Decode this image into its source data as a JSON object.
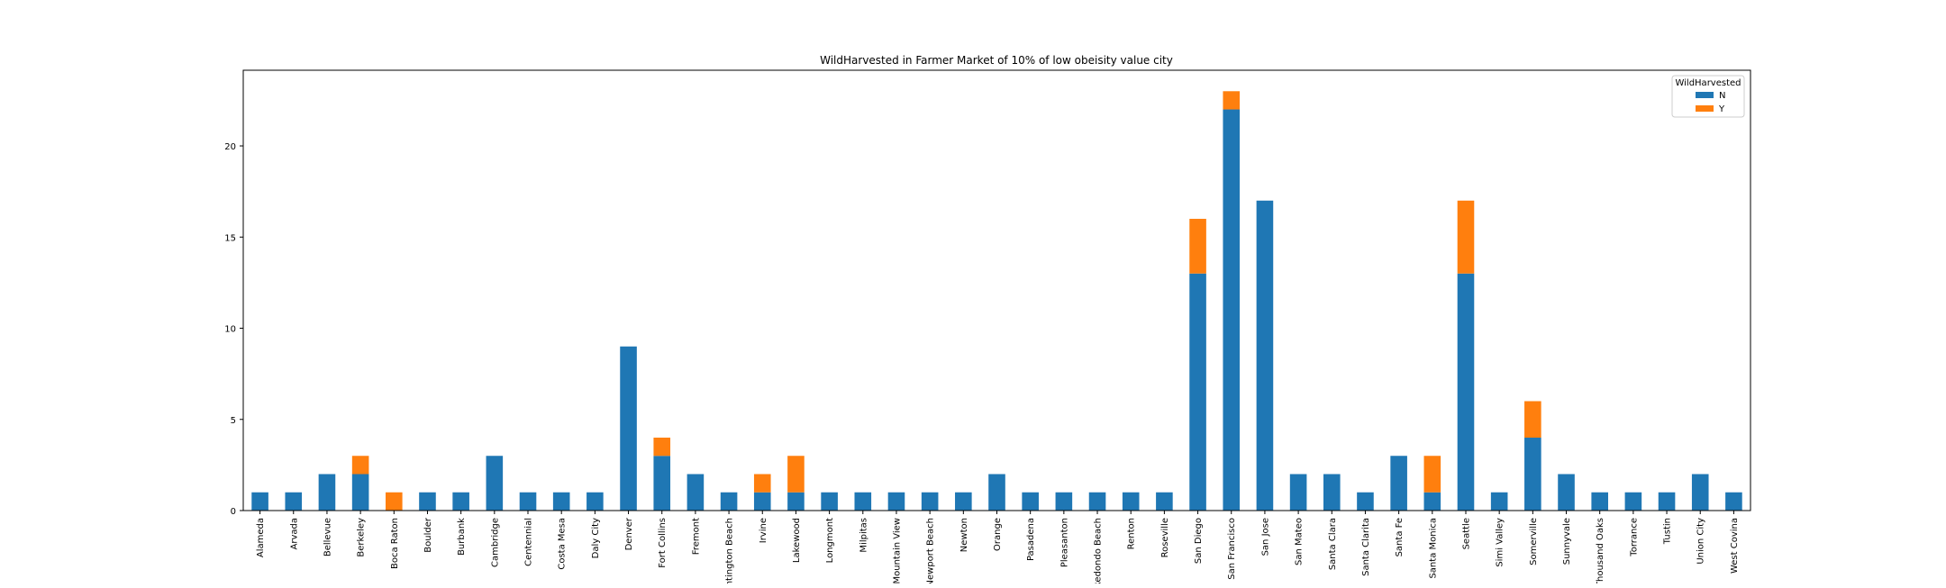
{
  "chart_data": {
    "type": "bar",
    "stacked": true,
    "title": "WildHarvested in Farmer Market of 10% of low obeisity value city",
    "xlabel": "",
    "ylabel": "",
    "ylim": [
      0,
      24.15
    ],
    "yticks": [
      0,
      5,
      10,
      15,
      20
    ],
    "legend": {
      "title": "WildHarvested",
      "placement": "top-right"
    },
    "grid": false,
    "categories": [
      "Alameda",
      "Arvada",
      "Bellevue",
      "Berkeley",
      "Boca Raton",
      "Boulder",
      "Burbank",
      "Cambridge",
      "Centennial",
      "Costa Mesa",
      "Daly City",
      "Denver",
      "Fort Collins",
      "Fremont",
      "Huntington Beach",
      "Irvine",
      "Lakewood",
      "Longmont",
      "Milpitas",
      "Mountain View",
      "Newport Beach",
      "Newton",
      "Orange",
      "Pasadena",
      "Pleasanton",
      "Redondo Beach",
      "Renton",
      "Roseville",
      "San Diego",
      "San Francisco",
      "San Jose",
      "San Mateo",
      "Santa Clara",
      "Santa Clarita",
      "Santa Fe",
      "Santa Monica",
      "Seattle",
      "Simi Valley",
      "Somerville",
      "Sunnyvale",
      "Thousand Oaks",
      "Torrance",
      "Tustin",
      "Union City",
      "West Covina"
    ],
    "series": [
      {
        "name": "N",
        "color": "#1f77b4",
        "values": [
          1,
          1,
          2,
          2,
          0,
          1,
          1,
          3,
          1,
          1,
          1,
          9,
          3,
          2,
          1,
          1,
          1,
          1,
          1,
          1,
          1,
          1,
          2,
          1,
          1,
          1,
          1,
          1,
          13,
          22,
          17,
          2,
          2,
          1,
          3,
          1,
          13,
          1,
          4,
          2,
          1,
          1,
          1,
          2,
          1
        ]
      },
      {
        "name": "Y",
        "color": "#ff7f0e",
        "values": [
          0,
          0,
          0,
          1,
          1,
          0,
          0,
          0,
          0,
          0,
          0,
          0,
          1,
          0,
          0,
          1,
          2,
          0,
          0,
          0,
          0,
          0,
          0,
          0,
          0,
          0,
          0,
          0,
          3,
          1,
          0,
          0,
          0,
          0,
          0,
          2,
          4,
          0,
          2,
          0,
          0,
          0,
          0,
          0,
          0
        ]
      }
    ]
  }
}
